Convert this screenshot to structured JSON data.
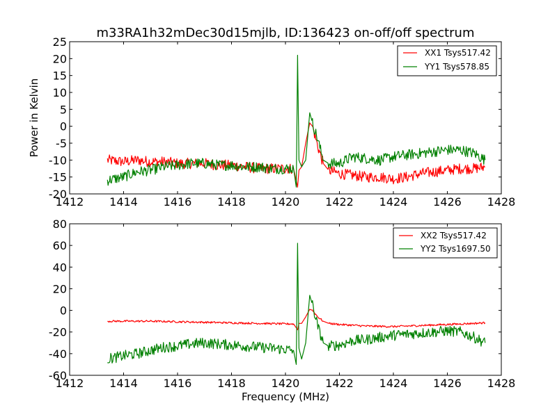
{
  "chart_data": [
    {
      "type": "line",
      "title": "m33RA1h32mDec30d15mjlb, ID:136423 on-off/off spectrum",
      "xlabel": "",
      "ylabel": "Power in Kelvin",
      "xlim": [
        1412,
        1428
      ],
      "ylim": [
        -20,
        25
      ],
      "xticks": [
        1412,
        1414,
        1416,
        1418,
        1420,
        1422,
        1424,
        1426,
        1428
      ],
      "yticks": [
        -20,
        -15,
        -10,
        -5,
        0,
        5,
        10,
        15,
        20,
        25
      ],
      "legend": "top-right",
      "grid": false,
      "series": [
        {
          "name": "XX1 Tsys517.42",
          "color": "#ff0000",
          "x": [
            1413.4,
            1414.0,
            1414.5,
            1415.0,
            1415.5,
            1416.0,
            1416.5,
            1417.0,
            1417.5,
            1418.0,
            1418.5,
            1419.0,
            1419.5,
            1420.0,
            1420.3,
            1420.45,
            1420.5,
            1420.6,
            1420.75,
            1420.9,
            1421.0,
            1421.2,
            1421.4,
            1421.6,
            1422.0,
            1422.5,
            1423.0,
            1423.5,
            1424.0,
            1424.5,
            1425.0,
            1425.5,
            1426.0,
            1426.5,
            1427.0,
            1427.4
          ],
          "y": [
            -10,
            -10.5,
            -10,
            -10.5,
            -10.5,
            -11,
            -11,
            -11,
            -11.5,
            -11.5,
            -12,
            -12.5,
            -12.5,
            -12.5,
            -12.5,
            -18,
            -13,
            -12,
            -5,
            1,
            0,
            -6,
            -11,
            -13,
            -14,
            -14.5,
            -15,
            -15,
            -15.5,
            -15,
            -14,
            -13.5,
            -13,
            -12.5,
            -12.5,
            -12
          ]
        },
        {
          "name": "YY1 Tsys578.85",
          "color": "#008000",
          "x": [
            1413.4,
            1414.0,
            1414.5,
            1415.0,
            1415.5,
            1416.0,
            1416.5,
            1417.0,
            1417.5,
            1418.0,
            1418.5,
            1419.0,
            1419.5,
            1420.0,
            1420.3,
            1420.4,
            1420.45,
            1420.5,
            1420.6,
            1420.75,
            1420.9,
            1421.0,
            1421.2,
            1421.4,
            1421.6,
            1422.0,
            1422.5,
            1423.0,
            1423.5,
            1424.0,
            1424.5,
            1425.0,
            1425.5,
            1426.0,
            1426.5,
            1427.0,
            1427.4
          ],
          "y": [
            -16,
            -15,
            -13.5,
            -13,
            -12,
            -11.5,
            -11,
            -11,
            -11.5,
            -11.5,
            -12,
            -12,
            -12.5,
            -12.5,
            -12.5,
            -18,
            21,
            -10,
            -12,
            -10,
            4,
            1,
            -4,
            -10,
            -11,
            -11,
            -9,
            -9.5,
            -10,
            -9,
            -8.5,
            -8,
            -7.5,
            -7,
            -7,
            -8,
            -10
          ]
        }
      ]
    },
    {
      "type": "line",
      "title": "",
      "xlabel": "Frequency (MHz)",
      "ylabel": "",
      "xlim": [
        1412,
        1428
      ],
      "ylim": [
        -60,
        80
      ],
      "xticks": [
        1412,
        1414,
        1416,
        1418,
        1420,
        1422,
        1424,
        1426,
        1428
      ],
      "yticks": [
        -60,
        -40,
        -20,
        0,
        20,
        40,
        60,
        80
      ],
      "legend": "top-right",
      "grid": false,
      "series": [
        {
          "name": "XX2 Tsys517.42",
          "color": "#ff0000",
          "x": [
            1413.4,
            1414.0,
            1415.0,
            1416.0,
            1417.0,
            1418.0,
            1419.0,
            1420.0,
            1420.3,
            1420.45,
            1420.5,
            1420.6,
            1420.75,
            1420.9,
            1421.0,
            1421.2,
            1421.4,
            1421.6,
            1422.0,
            1423.0,
            1424.0,
            1425.0,
            1426.0,
            1427.0,
            1427.4
          ],
          "y": [
            -10,
            -10,
            -10,
            -10.5,
            -11,
            -11.5,
            -12,
            -12.5,
            -12.5,
            -18,
            -12,
            -12,
            -6,
            1,
            0,
            -6,
            -10,
            -12,
            -13,
            -14.5,
            -15,
            -14,
            -13,
            -12,
            -11.5
          ]
        },
        {
          "name": "YY2 Tsys1697.50",
          "color": "#008000",
          "x": [
            1413.4,
            1414.0,
            1414.5,
            1415.0,
            1415.5,
            1416.0,
            1416.5,
            1417.0,
            1417.5,
            1418.0,
            1418.5,
            1419.0,
            1419.5,
            1420.0,
            1420.3,
            1420.4,
            1420.45,
            1420.5,
            1420.6,
            1420.75,
            1420.9,
            1421.0,
            1421.2,
            1421.4,
            1421.6,
            1422.0,
            1422.5,
            1423.0,
            1423.5,
            1424.0,
            1424.5,
            1425.0,
            1425.5,
            1426.0,
            1426.5,
            1427.0,
            1427.4
          ],
          "y": [
            -45,
            -42,
            -40,
            -37,
            -34,
            -33,
            -31,
            -30,
            -31,
            -32,
            -33,
            -34,
            -35,
            -36,
            -37,
            -50,
            62,
            -35,
            -45,
            -30,
            14,
            5,
            -15,
            -30,
            -33,
            -32,
            -28,
            -27,
            -25,
            -23,
            -22,
            -21,
            -20,
            -19,
            -20,
            -25,
            -30
          ]
        }
      ]
    }
  ]
}
